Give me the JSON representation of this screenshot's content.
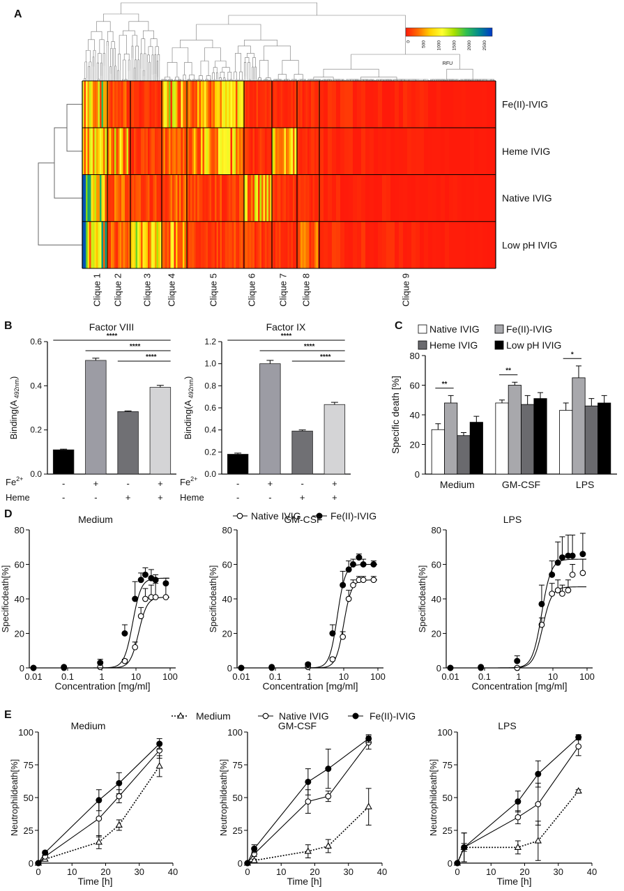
{
  "panel_labels": [
    "A",
    "B",
    "C",
    "D",
    "E"
  ],
  "colorbar": {
    "label": "RFU",
    "ticks": [
      "0",
      "500",
      "1000",
      "1500",
      "2000",
      "2500"
    ],
    "colors": [
      "#ff1a0a",
      "#ff6a00",
      "#ffd000",
      "#ffff30",
      "#a8e000",
      "#30c050",
      "#008890",
      "#0038c8"
    ]
  },
  "chart_data": [
    {
      "id": "A",
      "type": "heatmap",
      "rows": [
        "Fe(II)-IVIG",
        "Heme IVIG",
        "Native IVIG",
        "Low pH IVIG"
      ],
      "cliques": [
        "Clique 1",
        "Clique 2",
        "Clique 3",
        "Clique 4",
        "Clique 5",
        "Clique 6",
        "Clique 7",
        "Clique 8",
        "Clique 9"
      ],
      "scale_label": "RFU",
      "scale_range": [
        0,
        2700
      ]
    },
    {
      "id": "B1",
      "type": "bar",
      "title": "Factor VIII",
      "ylabel_main": "Binding(A",
      "ylabel_sub": "492nm",
      "ylabel_end": ")",
      "values": [
        0.11,
        0.515,
        0.283,
        0.393
      ],
      "errors": [
        0.003,
        0.01,
        0.003,
        0.009
      ],
      "colors": [
        "#000000",
        "#9c9ca4",
        "#707074",
        "#d4d4d6"
      ],
      "ylim": [
        0,
        0.6
      ],
      "yticks": [
        "0.0",
        "0.2",
        "0.4",
        "0.6"
      ],
      "row_labels": [
        "Fe",
        "Heme"
      ],
      "row_label_sup": "2+",
      "fe_signs": [
        "-",
        "+",
        "-",
        "+"
      ],
      "heme_signs": [
        "-",
        "-",
        "+",
        "+"
      ],
      "significance": [
        "****",
        "****",
        "****"
      ]
    },
    {
      "id": "B2",
      "type": "bar",
      "title": "Factor IX",
      "ylabel_main": "Binding(A",
      "ylabel_sub": "492nm",
      "ylabel_end": ")",
      "values": [
        0.18,
        1.0,
        0.39,
        0.63
      ],
      "errors": [
        0.01,
        0.03,
        0.01,
        0.02
      ],
      "colors": [
        "#000000",
        "#9c9ca4",
        "#707074",
        "#d4d4d6"
      ],
      "ylim": [
        0,
        1.2
      ],
      "yticks": [
        "0.0",
        "0.2",
        "0.4",
        "0.6",
        "0.8",
        "1.0",
        "1.2"
      ],
      "row_labels": [
        "Fe",
        "Heme"
      ],
      "row_label_sup": "2+",
      "fe_signs": [
        "-",
        "+",
        "-",
        "+"
      ],
      "heme_signs": [
        "-",
        "-",
        "+",
        "+"
      ],
      "significance": [
        "****",
        "****",
        "****"
      ]
    },
    {
      "id": "C",
      "type": "bar",
      "ylabel": "Specific death [%]",
      "categories": [
        "Medium",
        "GM-CSF",
        "LPS"
      ],
      "series": [
        {
          "name": "Native IVIG",
          "color": "#ffffff",
          "values": [
            30,
            48,
            43
          ],
          "errors": [
            4,
            2,
            5
          ]
        },
        {
          "name": "Fe(II)-IVIG",
          "color": "#a8a8ac",
          "values": [
            48,
            60,
            65
          ],
          "errors": [
            5,
            2,
            8
          ]
        },
        {
          "name": "Heme IVIG",
          "color": "#6a6a6e",
          "values": [
            26,
            47,
            46
          ],
          "errors": [
            2,
            6,
            5
          ]
        },
        {
          "name": "Low pH IVIG",
          "color": "#000000",
          "values": [
            35,
            51,
            48
          ],
          "errors": [
            4,
            4,
            5
          ]
        }
      ],
      "ylim": [
        0,
        80
      ],
      "yticks": [
        "0",
        "20",
        "40",
        "60",
        "80"
      ],
      "significance": [
        "**",
        "**",
        "*"
      ]
    },
    {
      "id": "D",
      "type": "line",
      "xscale": "log",
      "legend": [
        "Native IVIG",
        "Fe(II)-IVIG"
      ],
      "xlabel": "Concentration [mg/ml]",
      "ylabel": "Specificdeath[%]",
      "xticks": [
        "0.01",
        "0.1",
        "1",
        "10",
        "100"
      ],
      "yticks": [
        "0",
        "20",
        "40",
        "60",
        "80"
      ],
      "ylim": [
        0,
        80
      ],
      "x": [
        0.01,
        0.078,
        0.9,
        4.7,
        9.4,
        14,
        18.8,
        28,
        37.5,
        75
      ],
      "panels": [
        {
          "title": "Medium",
          "series": [
            {
              "name": "Native IVIG",
              "values": [
                0,
                0,
                0.5,
                4,
                12,
                30,
                40,
                41,
                41,
                41
              ],
              "errors": [
                0,
                0,
                0.5,
                1,
                3,
                5,
                6,
                7,
                8,
                8
              ],
              "fit": {
                "bottom": 0,
                "top": 41,
                "ec50": 12,
                "hill": 3.5
              }
            },
            {
              "name": "Fe(II)-IVIG",
              "values": [
                0,
                0.5,
                3,
                20,
                40,
                51,
                54,
                52,
                51,
                49
              ],
              "errors": [
                0,
                0.5,
                2,
                5,
                10,
                4,
                4,
                5,
                3,
                3
              ],
              "fit": {
                "bottom": 0,
                "top": 52,
                "ec50": 8,
                "hill": 3.5
              }
            }
          ]
        },
        {
          "title": "GM-CSF",
          "series": [
            {
              "name": "Native IVIG",
              "values": [
                0,
                0,
                0.5,
                5,
                18,
                40,
                48,
                51,
                51,
                51
              ],
              "errors": [
                0,
                0,
                0.5,
                1,
                3,
                5,
                3,
                2,
                2,
                2
              ],
              "fit": {
                "bottom": 0,
                "top": 51,
                "ec50": 10,
                "hill": 3.8
              }
            },
            {
              "name": "Fe(II)-IVIG",
              "values": [
                0,
                0.5,
                2,
                20,
                48,
                57,
                60,
                64,
                60,
                60
              ],
              "errors": [
                0,
                0.5,
                1,
                5,
                8,
                5,
                3,
                2,
                3,
                2
              ],
              "fit": {
                "bottom": 0,
                "top": 60,
                "ec50": 6.5,
                "hill": 3.8
              }
            }
          ]
        },
        {
          "title": "LPS",
          "series": [
            {
              "name": "Native IVIG",
              "values": [
                0,
                0,
                0,
                25,
                43,
                45,
                43,
                45,
                54,
                55
              ],
              "errors": [
                0,
                0,
                0,
                4,
                6,
                6,
                5,
                6,
                6,
                8
              ],
              "fit": {
                "bottom": 0,
                "top": 47,
                "ec50": 5,
                "hill": 3.2
              }
            },
            {
              "name": "Fe(II)-IVIG",
              "values": [
                0,
                0.5,
                4,
                37,
                54,
                61,
                64,
                65,
                65,
                66
              ],
              "errors": [
                0,
                0.5,
                3,
                11,
                8,
                12,
                12,
                12,
                12,
                12
              ],
              "fit": {
                "bottom": 0,
                "top": 63,
                "ec50": 4.7,
                "hill": 3.2
              }
            }
          ]
        }
      ]
    },
    {
      "id": "E",
      "type": "line",
      "legend": [
        "Medium",
        "Native IVIG",
        "Fe(II)-IVIG"
      ],
      "xlabel": "Time [h]",
      "ylabel": "Neutrophildeath[%]",
      "xticks": [
        "0",
        "10",
        "20",
        "30",
        "40"
      ],
      "yticks": [
        "0",
        "25",
        "50",
        "75",
        "100"
      ],
      "xlim": [
        0,
        40
      ],
      "ylim": [
        0,
        100
      ],
      "x": [
        0,
        2,
        18,
        24,
        36
      ],
      "panels": [
        {
          "title": "Medium",
          "series": [
            {
              "name": "Medium",
              "values": [
                0,
                3,
                16,
                29,
                74
              ],
              "errors": [
                0,
                1,
                5,
                4,
                8
              ]
            },
            {
              "name": "Native IVIG",
              "values": [
                0,
                5,
                34,
                51,
                86
              ],
              "errors": [
                0,
                1,
                14,
                5,
                6
              ]
            },
            {
              "name": "Fe(II)-IVIG",
              "values": [
                0,
                8,
                48,
                61,
                91
              ],
              "errors": [
                0,
                1,
                8,
                8,
                4
              ]
            }
          ]
        },
        {
          "title": "GM-CSF",
          "series": [
            {
              "name": "Medium",
              "values": [
                0,
                2,
                9,
                13,
                43
              ],
              "errors": [
                0,
                1,
                5,
                5,
                14
              ]
            },
            {
              "name": "Native IVIG",
              "values": [
                0,
                7,
                47,
                51,
                92
              ],
              "errors": [
                0,
                2,
                9,
                4,
                5
              ]
            },
            {
              "name": "Fe(II)-IVIG",
              "values": [
                0,
                11,
                62,
                72,
                95
              ],
              "errors": [
                0,
                3,
                10,
                15,
                3
              ]
            }
          ]
        },
        {
          "title": "LPS",
          "series": [
            {
              "name": "Medium",
              "values": [
                0,
                12,
                12,
                17,
                55
              ],
              "errors": [
                0,
                3,
                5,
                15,
                1
              ]
            },
            {
              "name": "Native IVIG",
              "values": [
                0,
                12,
                35,
                45,
                89
              ],
              "errors": [
                0,
                11,
                5,
                16,
                7
              ]
            },
            {
              "name": "Fe(II)-IVIG",
              "values": [
                0,
                12,
                47,
                68,
                96
              ],
              "errors": [
                0,
                11,
                8,
                10,
                2
              ]
            }
          ]
        }
      ]
    }
  ]
}
